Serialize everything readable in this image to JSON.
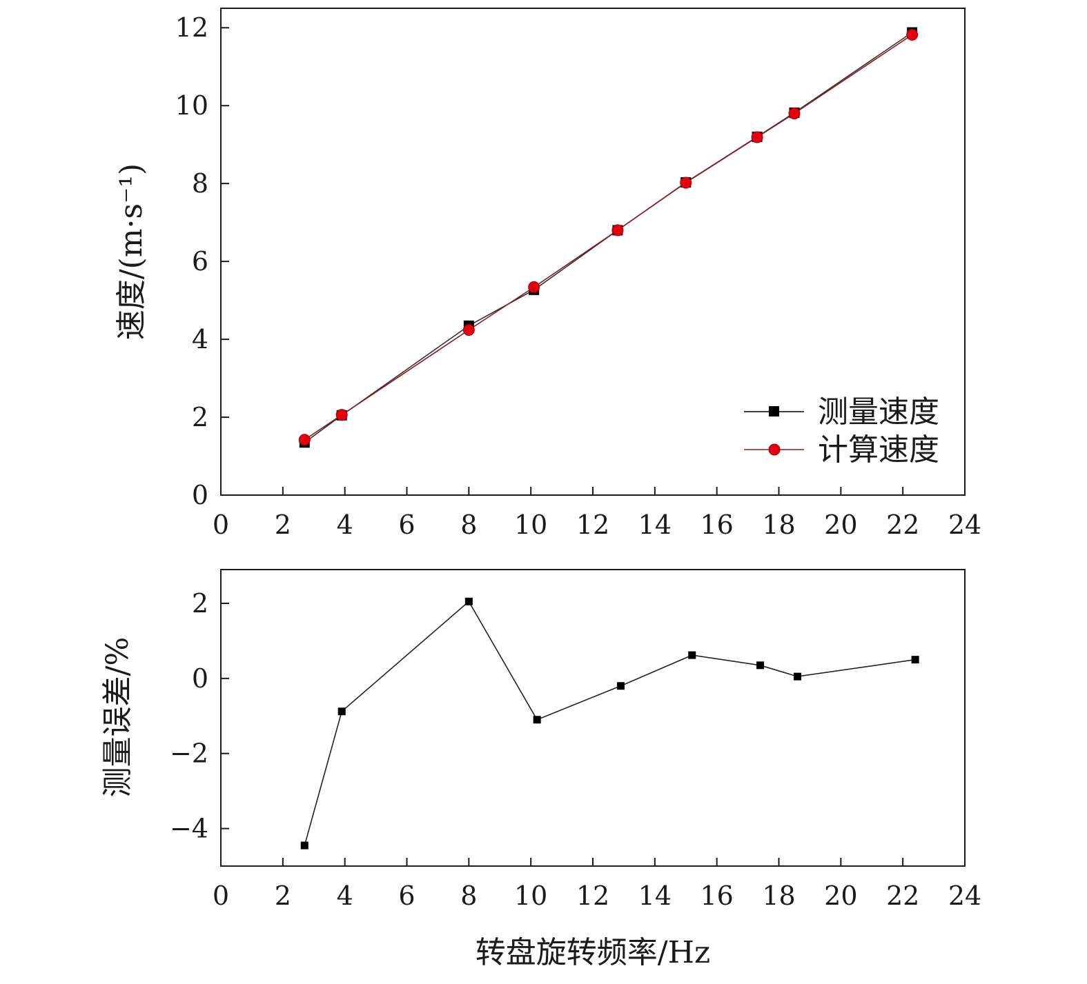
{
  "chart_data": [
    {
      "type": "line",
      "title": "",
      "xlabel": "",
      "ylabel": "速度/(m·s⁻¹)",
      "xlim": [
        0,
        24
      ],
      "ylim": [
        0,
        12.5
      ],
      "xticks": [
        0,
        2,
        4,
        6,
        8,
        10,
        12,
        14,
        16,
        18,
        20,
        22,
        24
      ],
      "xtick_labels": [
        "0",
        "2",
        "4",
        "6",
        "8",
        "10",
        "12",
        "14",
        "16",
        "18",
        "20",
        "22",
        "24"
      ],
      "yticks": [
        0,
        2,
        4,
        6,
        8,
        10,
        12
      ],
      "ytick_labels": [
        "0",
        "2",
        "4",
        "6",
        "8",
        "10",
        "12"
      ],
      "grid": false,
      "legend_position": "bottom-right",
      "series": [
        {
          "name": "测量速度",
          "marker": "square",
          "color": "#000000",
          "x": [
            2.7,
            3.9,
            8.0,
            10.1,
            12.8,
            15.0,
            17.3,
            18.5,
            22.3
          ],
          "y": [
            1.35,
            2.05,
            4.35,
            5.27,
            6.8,
            8.03,
            9.2,
            9.82,
            11.88
          ]
        },
        {
          "name": "计算速度",
          "marker": "circle",
          "color": "#e3000f",
          "x": [
            2.7,
            3.9,
            8.0,
            10.1,
            12.8,
            15.0,
            17.3,
            18.5,
            22.3
          ],
          "y": [
            1.42,
            2.06,
            4.24,
            5.34,
            6.8,
            8.02,
            9.19,
            9.8,
            11.82
          ]
        }
      ]
    },
    {
      "type": "line",
      "title": "",
      "xlabel": "转盘旋转频率/Hz",
      "ylabel": "测量误差/%",
      "xlim": [
        0,
        24
      ],
      "ylim": [
        -5,
        2.9
      ],
      "xticks": [
        0,
        2,
        4,
        6,
        8,
        10,
        12,
        14,
        16,
        18,
        20,
        22,
        24
      ],
      "xtick_labels": [
        "0",
        "2",
        "4",
        "6",
        "8",
        "10",
        "12",
        "14",
        "16",
        "18",
        "20",
        "22",
        "24"
      ],
      "yticks": [
        -4,
        -2,
        0,
        2
      ],
      "ytick_labels": [
        "−4",
        "−2",
        "0",
        "2"
      ],
      "grid": false,
      "series": [
        {
          "marker": "square",
          "color": "#000000",
          "x": [
            2.7,
            3.9,
            8.0,
            10.2,
            12.9,
            15.2,
            17.4,
            18.6,
            22.4
          ],
          "y": [
            -4.45,
            -0.88,
            2.05,
            -1.1,
            -0.2,
            0.62,
            0.35,
            0.05,
            0.5
          ]
        }
      ]
    }
  ]
}
